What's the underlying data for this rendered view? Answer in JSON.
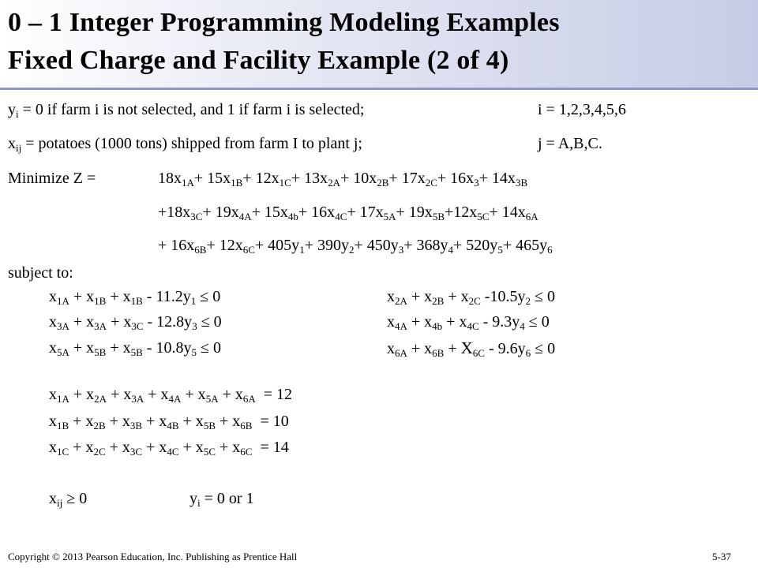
{
  "title": {
    "line1": "0 – 1 Integer Programming Modeling Examples",
    "line2": "Fixed Charge and Facility Example (2 of  4)"
  },
  "definitions": {
    "y_def": "= 0 if  farm i is not selected, and 1 if  farm i is selected;",
    "y_index": "i = 1,2,3,4,5,6",
    "x_def": "= potatoes (1000 tons) shipped from farm I to plant j;",
    "x_index": "j = A,B,C."
  },
  "objective": {
    "label": "Minimize Z =",
    "t1": "18x",
    "t2": "+ 15x",
    "t3": "+ 12x",
    "t4": "+ 13x",
    "t5": "+ 10x",
    "t6": "+ 17x",
    "t7": "+ 16x",
    "t8": "+ 14x",
    "u1": "+18x",
    "u2": "+ 19x",
    "u3": "+ 15x",
    "u4": "+ 16x",
    "u5": "+ 17x",
    "u6": "+ 19x",
    "u7": "+12x",
    "u8": "+ 14x",
    "v1": "+ 16x",
    "v2": "+ 12x",
    "v3": "+ 405y",
    "v4": "+ 390y",
    "v5": "+ 450y",
    "v6": "+ 368y",
    "v7": "+ 520y",
    "v8": "+ 465y"
  },
  "subject_to": "subject to:",
  "capacity": {
    "c1_tail": "- 11.2y",
    "c1_rhs": "≤ 0",
    "c2_tail": "-10.5y",
    "c2_rhs": "≤ 0",
    "c3_tail": "- 12.8y",
    "c3_rhs": "≤ 0",
    "c4_tail": "- 9.3y",
    "c4_rhs": "≤ 0",
    "c5_tail": "- 10.8y",
    "c5_rhs": "≤ 0",
    "c6_tail": "- 9.6y",
    "c6_rhs": "≤ 0"
  },
  "demand": {
    "rhs_a": "= 12",
    "rhs_b": "= 10",
    "rhs_c": "= 14"
  },
  "nonneg": {
    "x_rhs": "≥ 0",
    "y_rhs": "= 0 or 1"
  },
  "footer": {
    "copyright": "Copyright © 2013 Pearson Education, Inc. Publishing as Prentice Hall",
    "page": "5-37"
  }
}
